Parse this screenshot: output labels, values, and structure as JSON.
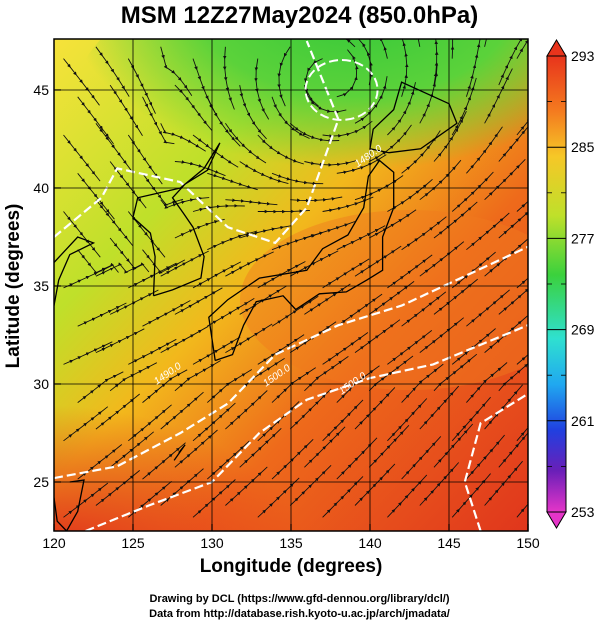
{
  "title": "MSM 12Z27May2024 (850.0hPa)",
  "credits": {
    "line1": "Drawing by DCL (https://www.gfd-dennou.org/library/dcl/)",
    "line2": "Data from http://database.rish.kyoto-u.ac.jp/arch/jmadata/"
  },
  "chart_data": {
    "type": "heatmap",
    "title": "MSM 12Z27May2024 (850.0hPa)",
    "xlabel": "Longitude (degrees)",
    "ylabel": "Latitude  (degrees)",
    "xlim": [
      120,
      150
    ],
    "ylim": [
      22.5,
      47.6
    ],
    "x_ticks": [
      "120",
      "125",
      "130",
      "135",
      "140",
      "145",
      "150"
    ],
    "y_ticks": [
      "25",
      "30",
      "35",
      "40",
      "45"
    ],
    "x_tick_values": [
      120,
      125,
      130,
      135,
      140,
      145,
      150
    ],
    "y_tick_values": [
      25,
      30,
      35,
      40,
      45
    ],
    "grid": true,
    "colorbar": {
      "min": 253,
      "max": 293,
      "labels": [
        "293",
        "285",
        "277",
        "269",
        "261",
        "253"
      ],
      "label_values": [
        293,
        285,
        277,
        269,
        261,
        253
      ],
      "placement": "right"
    },
    "contour_labels": [
      {
        "text": "1500.0",
        "lon": 134.2,
        "lat": 30.3
      },
      {
        "text": "1500.0",
        "lon": 139.0,
        "lat": 29.9
      },
      {
        "text": "1490.0",
        "lon": 127.3,
        "lat": 30.4
      },
      {
        "text": "1480.0",
        "lon": 140.0,
        "lat": 41.5
      }
    ],
    "fields": [
      "temperature (shading)",
      "geopotential height (white contours)",
      "wind streamlines (black)"
    ]
  }
}
